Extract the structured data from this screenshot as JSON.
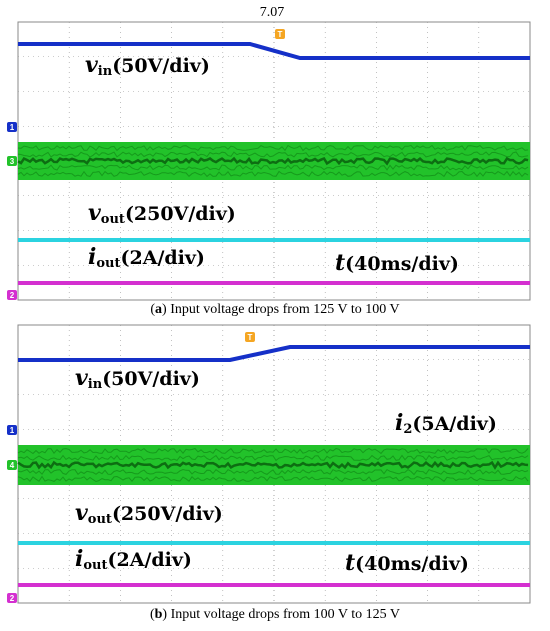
{
  "top_label": "7.07",
  "panels": [
    {
      "caption": {
        "label": "a",
        "text": "Input voltage drops from 125 V to 100 V"
      },
      "markers": {
        "trigger": "T",
        "ch1": "1",
        "ch3": "3",
        "ch2": "2"
      },
      "labels": [
        {
          "symbol": "v",
          "subscript": "in",
          "scale": "(50V/div)"
        },
        {
          "symbol": "v",
          "subscript": "out",
          "scale": "(250V/div)"
        },
        {
          "symbol": "i",
          "subscript": "out",
          "scale": "(2A/div)"
        },
        {
          "symbol": "t",
          "subscript": "",
          "scale": "(40ms/div)"
        }
      ]
    },
    {
      "caption": {
        "label": "b",
        "text": "Input voltage drops from 100 V to 125 V"
      },
      "markers": {
        "trigger": "T",
        "ch1": "1",
        "ch3": "4",
        "ch2": "2"
      },
      "labels": [
        {
          "symbol": "v",
          "subscript": "in",
          "scale": "(50V/div)"
        },
        {
          "symbol": "i",
          "subscript": "2",
          "scale": "(5A/div)"
        },
        {
          "symbol": "v",
          "subscript": "out",
          "scale": "(250V/div)"
        },
        {
          "symbol": "i",
          "subscript": "out",
          "scale": "(2A/div)"
        },
        {
          "symbol": "t",
          "subscript": "",
          "scale": "(40ms/div)"
        }
      ]
    }
  ]
}
